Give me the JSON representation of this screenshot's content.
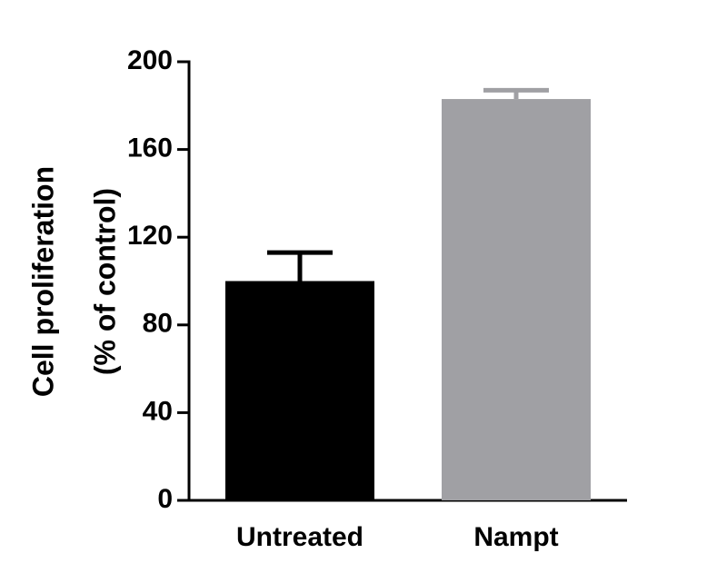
{
  "chart_data": {
    "type": "bar",
    "ylabel": [
      "Cell proliferation",
      "(% of control)"
    ],
    "categories": [
      "Untreated",
      "Nampt"
    ],
    "values": [
      100,
      183
    ],
    "errors": [
      13,
      4
    ],
    "colors": [
      "#000000",
      "#a0a0a4"
    ],
    "ylim": [
      0,
      200
    ],
    "yticks": [
      0,
      40,
      80,
      120,
      160,
      200
    ]
  }
}
